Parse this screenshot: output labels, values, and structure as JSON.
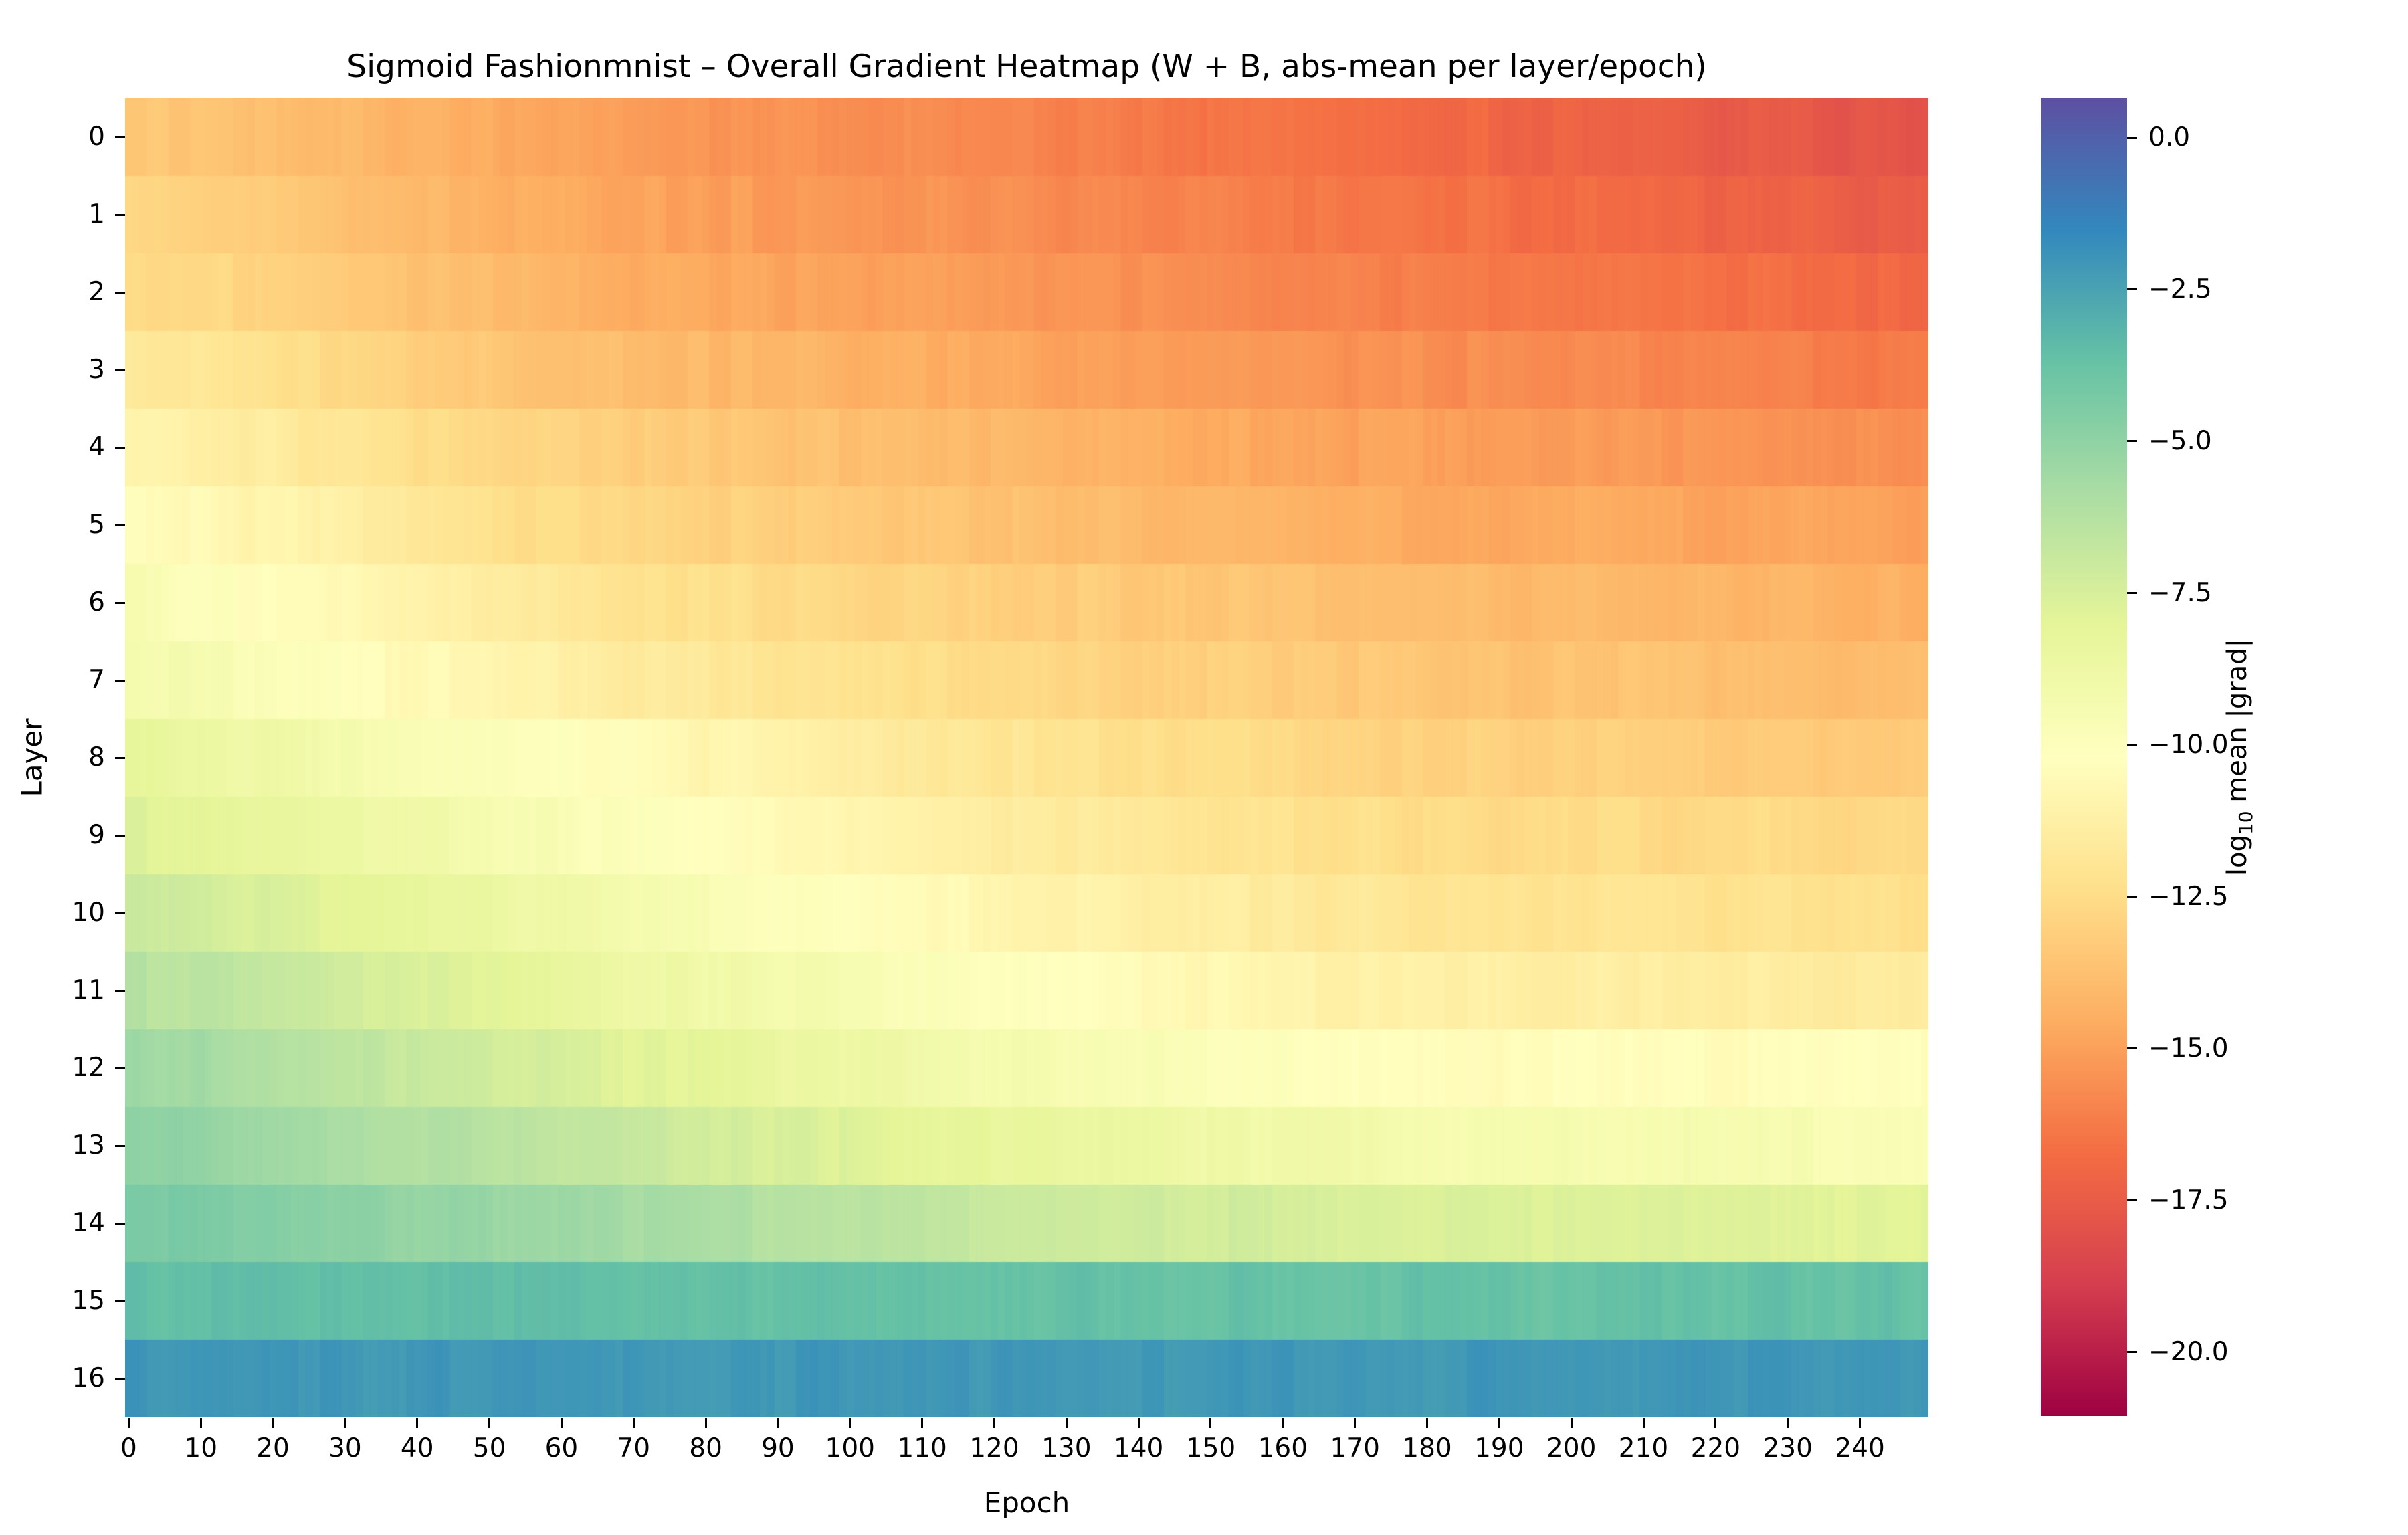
{
  "chart_data": {
    "type": "heatmap",
    "title": "Sigmoid Fashionmnist – Overall Gradient Heatmap (W + B, abs-mean per layer/epoch)",
    "xlabel": "Epoch",
    "ylabel": "Layer",
    "colorbar_label_prefix": "log",
    "colorbar_label_subscript": "10",
    "colorbar_label_suffix": " mean |grad|",
    "x_ticks": [
      0,
      10,
      20,
      30,
      40,
      50,
      60,
      70,
      80,
      90,
      100,
      110,
      120,
      130,
      140,
      150,
      160,
      170,
      180,
      190,
      200,
      210,
      220,
      230,
      240
    ],
    "y_ticks": [
      0,
      1,
      2,
      3,
      4,
      5,
      6,
      7,
      8,
      9,
      10,
      11,
      12,
      13,
      14,
      15,
      16
    ],
    "colorbar_ticks": [
      {
        "value": 0.0,
        "label": "0.0"
      },
      {
        "value": -2.5,
        "label": "−2.5"
      },
      {
        "value": -5.0,
        "label": "−5.0"
      },
      {
        "value": -7.5,
        "label": "−7.5"
      },
      {
        "value": -10.0,
        "label": "−10.0"
      },
      {
        "value": -12.5,
        "label": "−12.5"
      },
      {
        "value": -15.0,
        "label": "−15.0"
      },
      {
        "value": -17.5,
        "label": "−17.5"
      },
      {
        "value": -20.0,
        "label": "−20.0"
      }
    ],
    "vmin": -21.05,
    "vmax": 0.65,
    "colormap_name": "Spectral",
    "colormap_anchors": [
      "#9e0142",
      "#d53e4f",
      "#f46d43",
      "#fdae61",
      "#fee08b",
      "#ffffbf",
      "#e6f598",
      "#abdda4",
      "#66c2a5",
      "#3288bd",
      "#5e4fa2"
    ],
    "n_epochs": 250,
    "n_layers": 17,
    "sample_epochs": [
      0,
      60,
      120,
      180,
      249
    ],
    "layer_values_log10": [
      [
        -13.3,
        -14.9,
        -15.9,
        -16.8,
        -17.9
      ],
      [
        -12.7,
        -14.7,
        -15.6,
        -16.5,
        -17.5
      ],
      [
        -12.4,
        -14.3,
        -15.2,
        -16.2,
        -17.0
      ],
      [
        -11.6,
        -13.7,
        -14.7,
        -15.6,
        -16.3
      ],
      [
        -10.9,
        -13.0,
        -14.1,
        -15.0,
        -15.6
      ],
      [
        -10.2,
        -12.6,
        -13.7,
        -14.6,
        -15.0
      ],
      [
        -9.5,
        -11.9,
        -13.1,
        -13.9,
        -14.4
      ],
      [
        -9.1,
        -11.3,
        -12.6,
        -13.5,
        -13.9
      ],
      [
        -8.2,
        -10.2,
        -12.0,
        -13.0,
        -13.3
      ],
      [
        -7.7,
        -9.6,
        -11.5,
        -12.5,
        -12.7
      ],
      [
        -7.0,
        -8.9,
        -10.9,
        -12.0,
        -12.3
      ],
      [
        -6.2,
        -8.3,
        -10.1,
        -11.3,
        -11.6
      ],
      [
        -5.4,
        -7.5,
        -9.3,
        -10.4,
        -10.3
      ],
      [
        -4.9,
        -6.6,
        -8.3,
        -9.3,
        -9.6
      ],
      [
        -4.3,
        -5.4,
        -6.9,
        -7.6,
        -7.9
      ],
      [
        -3.5,
        -3.6,
        -3.7,
        -3.7,
        -3.7
      ],
      [
        -2.1,
        -2.1,
        -2.1,
        -2.1,
        -2.1
      ]
    ],
    "noise": {
      "block_amp": 0.16,
      "cell_amp": 0.07,
      "column_amp": 0.08
    },
    "text_color": "#000000",
    "background_color": "#ffffff",
    "legend_position": "right-colorbar",
    "grid": false
  }
}
